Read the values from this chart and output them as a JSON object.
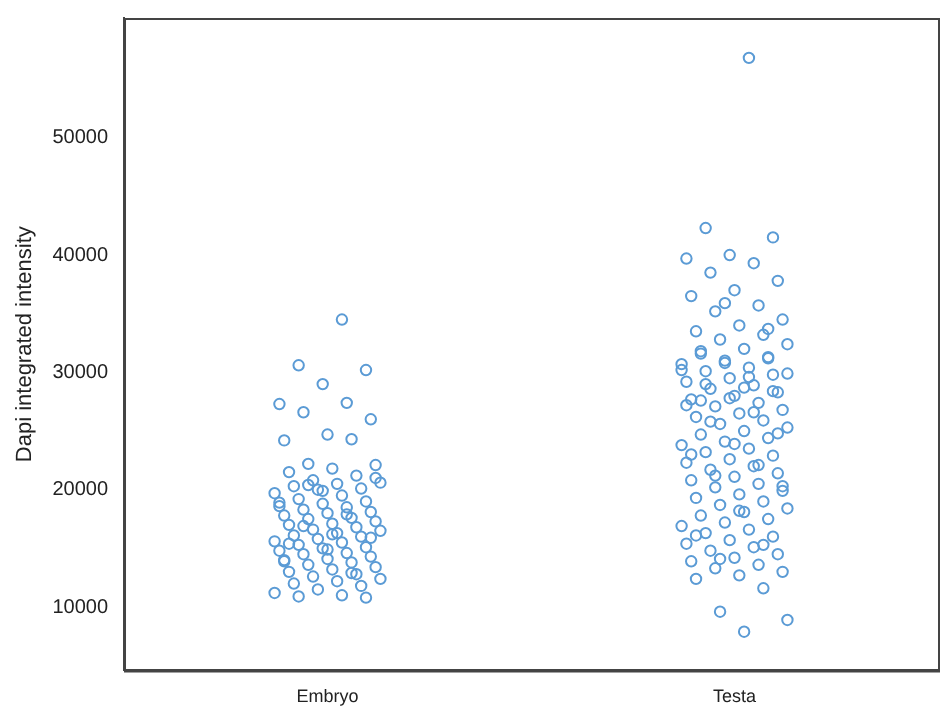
{
  "chart_data": {
    "type": "scatter",
    "ylabel": "Dapi integrated intensity",
    "categories": [
      "Embryo",
      "Testa"
    ],
    "ylim": [
      4600,
      60200
    ],
    "yticks": [
      10000,
      20000,
      30000,
      40000,
      50000
    ],
    "grid": false,
    "legend": false,
    "marker": "circle",
    "series": [
      {
        "color": "#5b9bd5",
        "x": [
          "Embryo",
          "Embryo",
          "Embryo",
          "Embryo",
          "Embryo",
          "Embryo",
          "Embryo",
          "Embryo",
          "Embryo",
          "Embryo",
          "Embryo",
          "Embryo",
          "Embryo",
          "Embryo",
          "Embryo",
          "Embryo",
          "Embryo",
          "Embryo",
          "Embryo",
          "Embryo",
          "Embryo",
          "Embryo",
          "Embryo",
          "Embryo",
          "Embryo",
          "Embryo",
          "Embryo",
          "Embryo",
          "Embryo",
          "Embryo",
          "Embryo",
          "Embryo",
          "Embryo",
          "Embryo",
          "Embryo",
          "Embryo",
          "Embryo",
          "Embryo",
          "Embryo",
          "Embryo",
          "Embryo",
          "Embryo",
          "Embryo",
          "Embryo",
          "Embryo",
          "Embryo",
          "Embryo",
          "Embryo",
          "Embryo",
          "Embryo",
          "Embryo",
          "Embryo",
          "Embryo",
          "Embryo",
          "Embryo",
          "Embryo",
          "Embryo",
          "Embryo",
          "Embryo",
          "Embryo",
          "Embryo",
          "Embryo",
          "Embryo",
          "Embryo",
          "Embryo",
          "Embryo",
          "Embryo",
          "Embryo",
          "Embryo",
          "Embryo",
          "Embryo",
          "Embryo",
          "Embryo",
          "Embryo",
          "Embryo",
          "Embryo",
          "Embryo",
          "Embryo",
          "Embryo",
          "Embryo",
          "Embryo",
          "Embryo",
          "Embryo",
          "Embryo"
        ],
        "values": [
          34500,
          30600,
          30200,
          29000,
          27300,
          27400,
          26600,
          26000,
          24700,
          24200,
          24300,
          22200,
          22100,
          21800,
          21500,
          21200,
          20800,
          20600,
          20500,
          20300,
          20100,
          20000,
          19700,
          19500,
          19200,
          19000,
          18800,
          18600,
          18500,
          18300,
          18100,
          18000,
          17800,
          17600,
          17500,
          17300,
          17100,
          17000,
          16800,
          16600,
          16500,
          16300,
          16100,
          16000,
          15800,
          15600,
          15500,
          15300,
          15100,
          15000,
          14800,
          14600,
          14500,
          14300,
          14100,
          14000,
          13800,
          13600,
          13400,
          13200,
          13000,
          12800,
          12600,
          12400,
          12200,
          12000,
          11800,
          11500,
          11200,
          11000,
          10900,
          10800,
          19900,
          18900,
          17900,
          16900,
          15900,
          14900,
          13900,
          12900,
          20400,
          21000,
          16200,
          15400
        ]
      },
      {
        "color": "#5b9bd5",
        "x": [
          "Testa",
          "Testa",
          "Testa",
          "Testa",
          "Testa",
          "Testa",
          "Testa",
          "Testa",
          "Testa",
          "Testa",
          "Testa",
          "Testa",
          "Testa",
          "Testa",
          "Testa",
          "Testa",
          "Testa",
          "Testa",
          "Testa",
          "Testa",
          "Testa",
          "Testa",
          "Testa",
          "Testa",
          "Testa",
          "Testa",
          "Testa",
          "Testa",
          "Testa",
          "Testa",
          "Testa",
          "Testa",
          "Testa",
          "Testa",
          "Testa",
          "Testa",
          "Testa",
          "Testa",
          "Testa",
          "Testa",
          "Testa",
          "Testa",
          "Testa",
          "Testa",
          "Testa",
          "Testa",
          "Testa",
          "Testa",
          "Testa",
          "Testa",
          "Testa",
          "Testa",
          "Testa",
          "Testa",
          "Testa",
          "Testa",
          "Testa",
          "Testa",
          "Testa",
          "Testa",
          "Testa",
          "Testa",
          "Testa",
          "Testa",
          "Testa",
          "Testa",
          "Testa",
          "Testa",
          "Testa",
          "Testa",
          "Testa",
          "Testa",
          "Testa",
          "Testa",
          "Testa",
          "Testa",
          "Testa",
          "Testa",
          "Testa",
          "Testa",
          "Testa",
          "Testa",
          "Testa",
          "Testa",
          "Testa",
          "Testa",
          "Testa",
          "Testa",
          "Testa",
          "Testa",
          "Testa",
          "Testa",
          "Testa",
          "Testa",
          "Testa",
          "Testa",
          "Testa",
          "Testa",
          "Testa",
          "Testa",
          "Testa",
          "Testa",
          "Testa",
          "Testa",
          "Testa",
          "Testa",
          "Testa",
          "Testa",
          "Testa",
          "Testa",
          "Testa",
          "Testa",
          "Testa",
          "Testa"
        ],
        "values": [
          56800,
          42300,
          41500,
          40000,
          39700,
          39300,
          38500,
          37800,
          37000,
          36500,
          35700,
          35200,
          34500,
          34000,
          33500,
          33200,
          32800,
          32400,
          32000,
          31600,
          31300,
          31000,
          30700,
          30400,
          30100,
          29800,
          29500,
          29200,
          28900,
          28600,
          28300,
          28000,
          27700,
          27400,
          27100,
          26800,
          26500,
          26200,
          25900,
          25600,
          25300,
          25000,
          24700,
          24400,
          24100,
          23800,
          23500,
          23200,
          22900,
          22600,
          22300,
          22000,
          21700,
          21400,
          21100,
          20800,
          20500,
          20200,
          19900,
          19600,
          19300,
          19000,
          18700,
          18400,
          18100,
          17800,
          17500,
          17200,
          16900,
          16600,
          16300,
          16000,
          15700,
          15400,
          15100,
          14800,
          14500,
          14200,
          13900,
          13600,
          13300,
          13000,
          12700,
          12400,
          11600,
          9600,
          8900,
          7900,
          31800,
          31200,
          30800,
          30200,
          29600,
          29000,
          28400,
          27800,
          27200,
          26600,
          25800,
          24800,
          23900,
          23000,
          22100,
          21200,
          20300,
          18200,
          16100,
          15300,
          14100,
          29900,
          28700,
          27600,
          33700,
          35900
        ]
      }
    ]
  }
}
